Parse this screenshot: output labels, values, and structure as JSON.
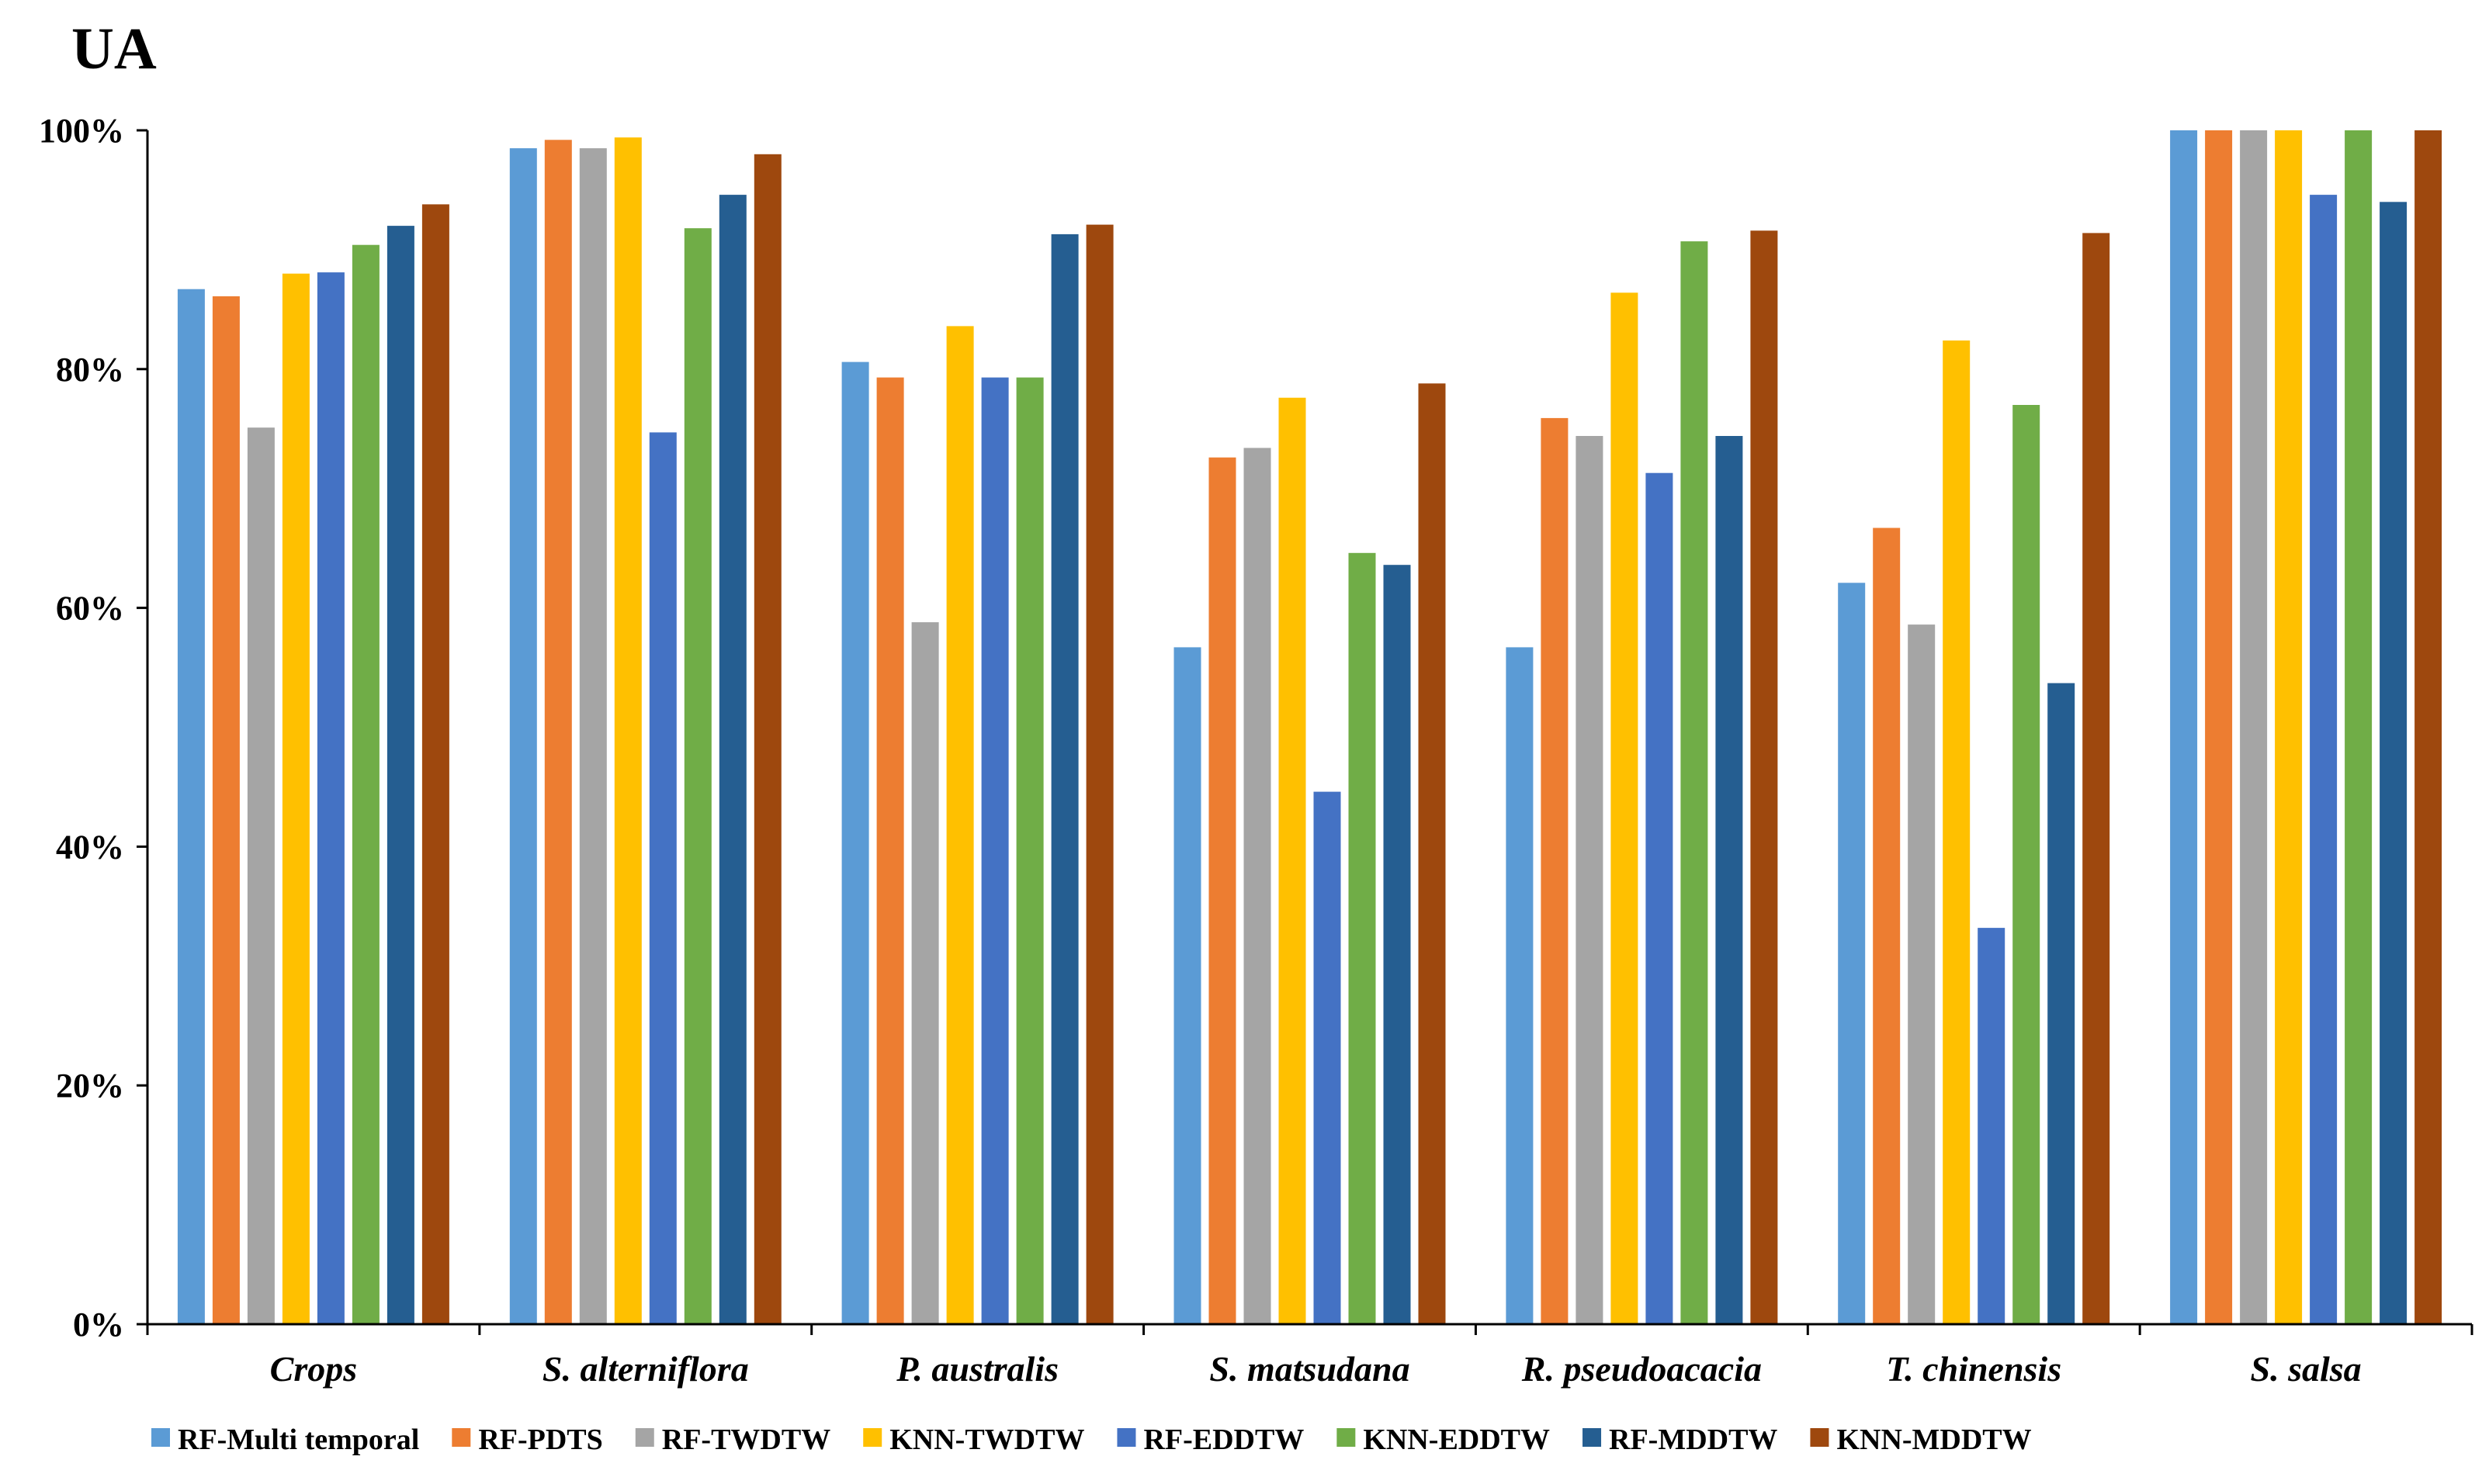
{
  "chart_data": {
    "type": "bar",
    "title": "UA",
    "xlabel": "",
    "ylabel": "",
    "ylim": [
      0,
      100
    ],
    "yticks": [
      0,
      20,
      40,
      60,
      80,
      100
    ],
    "ytick_labels": [
      "0%",
      "20%",
      "40%",
      "60%",
      "80%",
      "100%"
    ],
    "grid": false,
    "legend_position": "bottom",
    "categories": [
      "Crops",
      "S. alterniflora",
      "P. australis",
      "S. matsudana",
      "R. pseudoacacia",
      "T. chinensis",
      "S. salsa"
    ],
    "series": [
      {
        "name": "RF-Multi temporal",
        "color": "#5B9BD5",
        "values": [
          86.7,
          98.5,
          80.6,
          56.7,
          56.7,
          62.1,
          100
        ]
      },
      {
        "name": "RF-PDTS",
        "color": "#ED7D31",
        "values": [
          86.1,
          99.2,
          79.3,
          72.6,
          75.9,
          66.7,
          100
        ]
      },
      {
        "name": "RF-TWDTW",
        "color": "#A5A5A5",
        "values": [
          75.1,
          98.5,
          58.8,
          73.4,
          74.4,
          58.6,
          100
        ]
      },
      {
        "name": "KNN-TWDTW",
        "color": "#FFC000",
        "values": [
          88.0,
          99.4,
          83.6,
          77.6,
          86.4,
          82.4,
          100
        ]
      },
      {
        "name": "RF-EDDTW",
        "color": "#4472C4",
        "values": [
          88.1,
          74.7,
          79.3,
          44.6,
          71.3,
          33.2,
          94.6
        ]
      },
      {
        "name": "KNN-EDDTW",
        "color": "#70AD47",
        "values": [
          90.4,
          91.8,
          79.3,
          64.6,
          90.7,
          77.0,
          100
        ]
      },
      {
        "name": "RF-MDDTW",
        "color": "#255E91",
        "values": [
          92.0,
          94.6,
          91.3,
          63.6,
          74.4,
          53.7,
          94.0
        ]
      },
      {
        "name": "KNN-MDDTW",
        "color": "#9E480E",
        "values": [
          93.8,
          98.0,
          92.1,
          78.8,
          91.6,
          91.4,
          100
        ]
      }
    ]
  }
}
